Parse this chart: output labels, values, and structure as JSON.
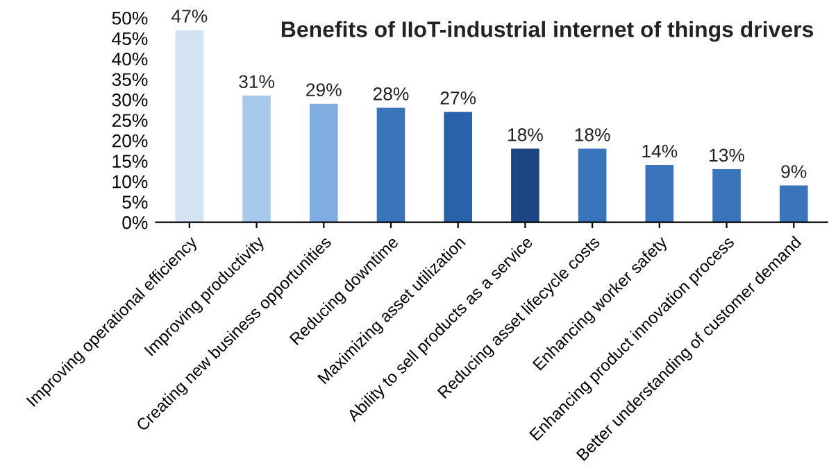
{
  "chart_data": {
    "type": "bar",
    "title": "Benefits of IIoT-industrial internet of things drivers",
    "categories": [
      "Improving operational efficiency",
      "Improving productivity",
      "Creating new business opportunities",
      "Reducing downtime",
      "Maximizing asset utilization",
      "Ability to sell products as a service",
      "Reducing asset lifecycle costs",
      "Enhancing worker safety",
      "Enhancing product innovation process",
      "Better understanding of customer demand"
    ],
    "values": [
      47,
      31,
      29,
      28,
      27,
      18,
      18,
      14,
      13,
      9
    ],
    "colors": [
      "#d3e3f4",
      "#a9c9ea",
      "#7fade0",
      "#3a74bb",
      "#2a61ab",
      "#1c4584",
      "#3a74bb",
      "#3a74bb",
      "#3a74bb",
      "#3a74bb"
    ],
    "value_labels": [
      "47%",
      "31%",
      "29%",
      "28%",
      "27%",
      "18%",
      "18%",
      "14%",
      "13%",
      "9%"
    ],
    "ylim": [
      0,
      50
    ],
    "yticks": [
      {
        "value": 0,
        "label": "0%"
      },
      {
        "value": 5,
        "label": "5%"
      },
      {
        "value": 10,
        "label": "10%"
      },
      {
        "value": 15,
        "label": "15%"
      },
      {
        "value": 20,
        "label": "20%"
      },
      {
        "value": 25,
        "label": "25%"
      },
      {
        "value": 30,
        "label": "30%"
      },
      {
        "value": 35,
        "label": "35%"
      },
      {
        "value": 40,
        "label": "40%"
      },
      {
        "value": 45,
        "label": "45%"
      },
      {
        "value": 50,
        "label": "50%"
      }
    ],
    "grid": false,
    "legend": false
  }
}
